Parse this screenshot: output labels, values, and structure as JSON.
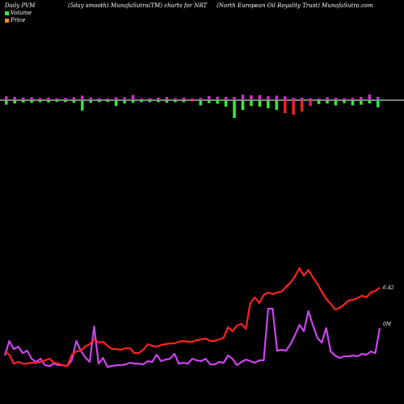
{
  "header": {
    "left": "Daily PVM",
    "center": "(5day smooth) MunafaSutra(TM) charts for NRT",
    "right": "(North European  Oil Royality Trust) MunafaSutra.com"
  },
  "legend": {
    "volume_label": "Volume",
    "price_label": "Price"
  },
  "colors": {
    "background": "#000000",
    "volume_up": "#cc33cc",
    "volume_down": "#33ee33",
    "volume_red": "#ee2222",
    "volume_line": "#cc44ee",
    "price_line": "#ff2222",
    "baseline": "#ffffff"
  },
  "chart_data": [
    {
      "type": "bar",
      "series": [
        {
          "values": [
            1.2,
            1.0,
            0.8,
            0.9,
            0.6,
            0.8,
            0.6,
            0.7,
            0.9,
            1.4,
            0.8,
            0.6,
            0.5,
            0.9,
            0.9,
            1.6,
            0.5,
            0.6,
            0.8,
            1.0,
            0.6,
            0.8,
            0.5,
            0.7,
            1.3,
            1.1,
            1.0,
            1.0,
            1.7,
            1.5,
            1.6,
            1.2,
            1.4,
            1.2,
            0.7,
            0.8,
            0.6,
            0.5,
            0.9,
            0.7,
            0.6,
            0.7,
            1.0,
            1.8,
            1.0
          ],
          "below": [
            1.4,
            1.0,
            0.7,
            0.8,
            0.6,
            0.7,
            0.5,
            0.6,
            0.8,
            3.2,
            0.8,
            0.6,
            0.5,
            1.8,
            1.0,
            0.8,
            0.6,
            0.6,
            0.6,
            0.8,
            0.6,
            0.6,
            0.4,
            1.6,
            0.9,
            1.1,
            2.0,
            5.5,
            3.0,
            1.8,
            2.0,
            2.5,
            3.0,
            4.0,
            4.5,
            3.5,
            1.8,
            1.2,
            1.0,
            1.6,
            0.9,
            1.6,
            1.4,
            1.0,
            2.2
          ],
          "below_colors": [
            "g",
            "g",
            "g",
            "g",
            "g",
            "g",
            "g",
            "g",
            "g",
            "g",
            "g",
            "g",
            "g",
            "g",
            "g",
            "g",
            "g",
            "g",
            "g",
            "g",
            "g",
            "g",
            "r",
            "g",
            "g",
            "g",
            "g",
            "g",
            "g",
            "g",
            "g",
            "g",
            "g",
            "r",
            "r",
            "r",
            "r",
            "g",
            "g",
            "g",
            "g",
            "g",
            "g",
            "g",
            "g"
          ]
        }
      ]
    },
    {
      "type": "line",
      "series": [
        {
          "name": "Volume",
          "label": "0M",
          "values": [
            5.0,
            6.8,
            5.8,
            6.1,
            5.3,
            5.6,
            4.6,
            4.2,
            4.6,
            3.8,
            3.7,
            4.0,
            3.8,
            3.8,
            3.7,
            4.4,
            6.8,
            5.6,
            4.8,
            4.2,
            8.6,
            4.0,
            4.7,
            3.6,
            3.7,
            3.8,
            3.8,
            3.9,
            4.1,
            4.0,
            4.0,
            3.9,
            4.3,
            4.2,
            5.1,
            4.3,
            4.5,
            4.6,
            5.2,
            4.0,
            4.1,
            4.0,
            4.6,
            4.4,
            4.3,
            4.6,
            3.9,
            3.9,
            4.2,
            4.1,
            5.0,
            4.6,
            3.8,
            4.2,
            4.5,
            4.3,
            4.1,
            4.4,
            4.4,
            10.8,
            10.8,
            5.6,
            5.7,
            5.6,
            6.4,
            7.5,
            8.8,
            8.0,
            10.5,
            8.8,
            7.2,
            6.6,
            8.4,
            5.5,
            5.0,
            4.7,
            4.9,
            4.9,
            5.0,
            4.9,
            5.2,
            5.1,
            5.5,
            5.3,
            8.4
          ]
        },
        {
          "name": "Price",
          "label": "6.42",
          "values": [
            5.5,
            5.1,
            4.0,
            4.2,
            4.0,
            4.0,
            4.1,
            4.1,
            4.2,
            4.4,
            4.6,
            4.1,
            4.0,
            3.8,
            3.7,
            5.1,
            5.5,
            5.6,
            6.1,
            6.4,
            7.0,
            6.6,
            6.7,
            6.2,
            5.8,
            5.8,
            5.7,
            5.9,
            5.9,
            5.3,
            5.3,
            5.7,
            6.4,
            6.2,
            6.1,
            6.3,
            6.4,
            6.5,
            6.5,
            6.7,
            6.8,
            6.7,
            6.7,
            6.9,
            7.0,
            7.1,
            6.8,
            6.8,
            7.0,
            7.2,
            8.5,
            8.0,
            8.7,
            8.9,
            8.3,
            11.5,
            12.2,
            11.5,
            12.5,
            12.8,
            12.6,
            12.8,
            12.9,
            13.5,
            14.0,
            14.8,
            15.8,
            14.9,
            15.6,
            14.7,
            13.9,
            12.9,
            12.0,
            11.4,
            10.7,
            10.9,
            11.3,
            11.8,
            11.9,
            12.1,
            12.4,
            12.2,
            12.8,
            13.0,
            13.4
          ]
        }
      ]
    }
  ]
}
